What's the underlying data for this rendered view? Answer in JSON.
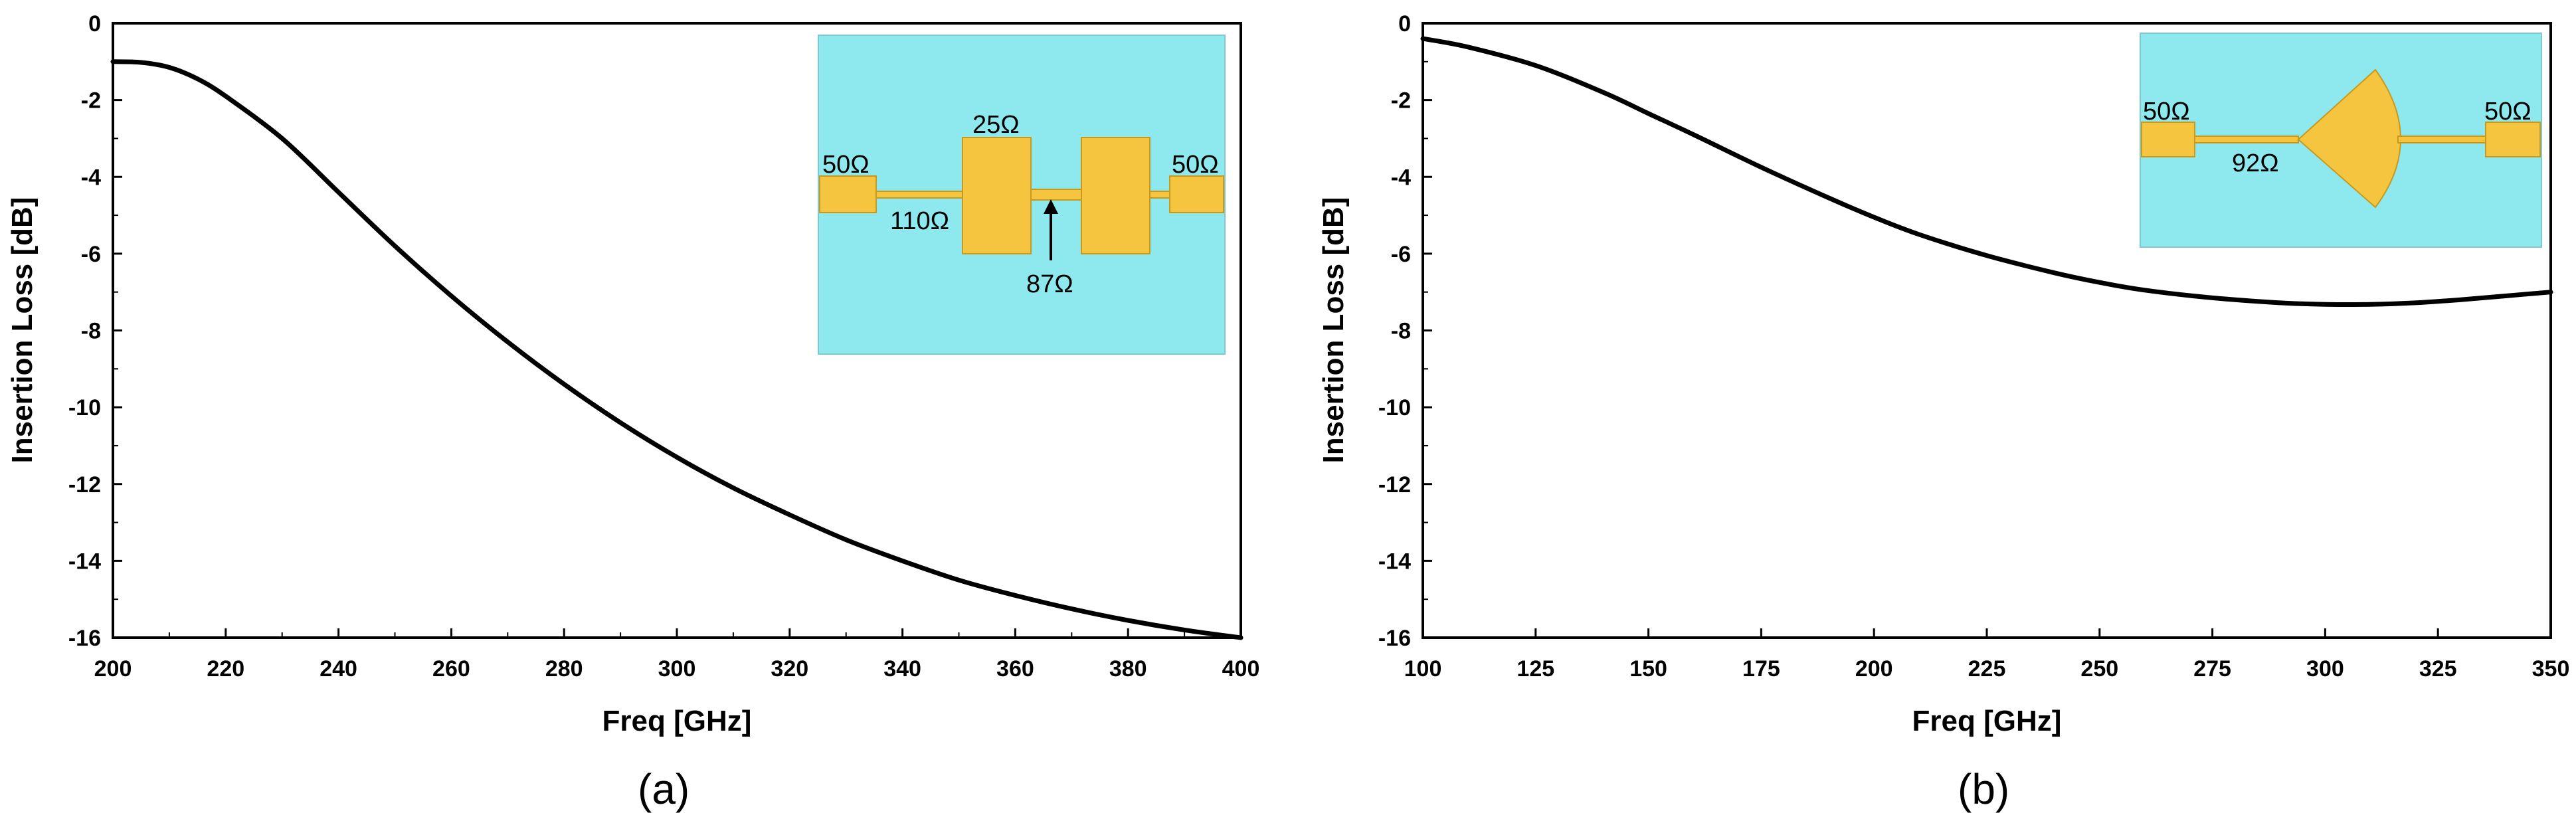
{
  "chart_data": [
    {
      "type": "line",
      "panel_label": "(a)",
      "xlabel": "Freq [GHz]",
      "ylabel": "Insertion Loss [dB]",
      "xlim": [
        200,
        400
      ],
      "ylim": [
        -16,
        0
      ],
      "xticks": [
        200,
        220,
        240,
        260,
        280,
        300,
        320,
        340,
        360,
        380,
        400
      ],
      "yticks": [
        0,
        -2,
        -4,
        -6,
        -8,
        -10,
        -12,
        -14,
        -16
      ],
      "grid": false,
      "series": [
        {
          "color": "#000000",
          "x": [
            200,
            205,
            210,
            215,
            220,
            230,
            240,
            250,
            260,
            270,
            280,
            290,
            300,
            310,
            320,
            330,
            340,
            350,
            360,
            370,
            380,
            390,
            400
          ],
          "y": [
            -1.0,
            -1.02,
            -1.15,
            -1.45,
            -1.9,
            -3.0,
            -4.4,
            -5.8,
            -7.1,
            -8.3,
            -9.4,
            -10.4,
            -11.3,
            -12.1,
            -12.8,
            -13.45,
            -14.0,
            -14.5,
            -14.9,
            -15.25,
            -15.55,
            -15.8,
            -16.0
          ]
        }
      ],
      "inset": {
        "background": "#8de9ee",
        "trace_color": "#f6c53f",
        "labels": [
          "50Ω",
          "25Ω",
          "50Ω",
          "110Ω",
          "87Ω"
        ]
      }
    },
    {
      "type": "line",
      "panel_label": "(b)",
      "xlabel": "Freq [GHz]",
      "ylabel": "Insertion Loss [dB]",
      "xlim": [
        100,
        350
      ],
      "ylim": [
        -16,
        0
      ],
      "xticks": [
        100,
        125,
        150,
        175,
        200,
        225,
        250,
        275,
        300,
        325,
        350
      ],
      "yticks": [
        0,
        -2,
        -4,
        -6,
        -8,
        -10,
        -12,
        -14,
        -16
      ],
      "grid": false,
      "series": [
        {
          "color": "#000000",
          "x": [
            100,
            110,
            125,
            140,
            150,
            160,
            175,
            190,
            200,
            210,
            225,
            240,
            250,
            260,
            275,
            290,
            300,
            310,
            320,
            330,
            340,
            350
          ],
          "y": [
            -0.4,
            -0.62,
            -1.1,
            -1.8,
            -2.35,
            -2.9,
            -3.75,
            -4.55,
            -5.05,
            -5.5,
            -6.05,
            -6.5,
            -6.75,
            -6.95,
            -7.15,
            -7.28,
            -7.32,
            -7.32,
            -7.28,
            -7.2,
            -7.1,
            -7.0
          ]
        }
      ],
      "inset": {
        "background": "#8de9ee",
        "trace_color": "#f6c53f",
        "labels": [
          "50Ω",
          "50Ω",
          "92Ω"
        ]
      }
    }
  ]
}
